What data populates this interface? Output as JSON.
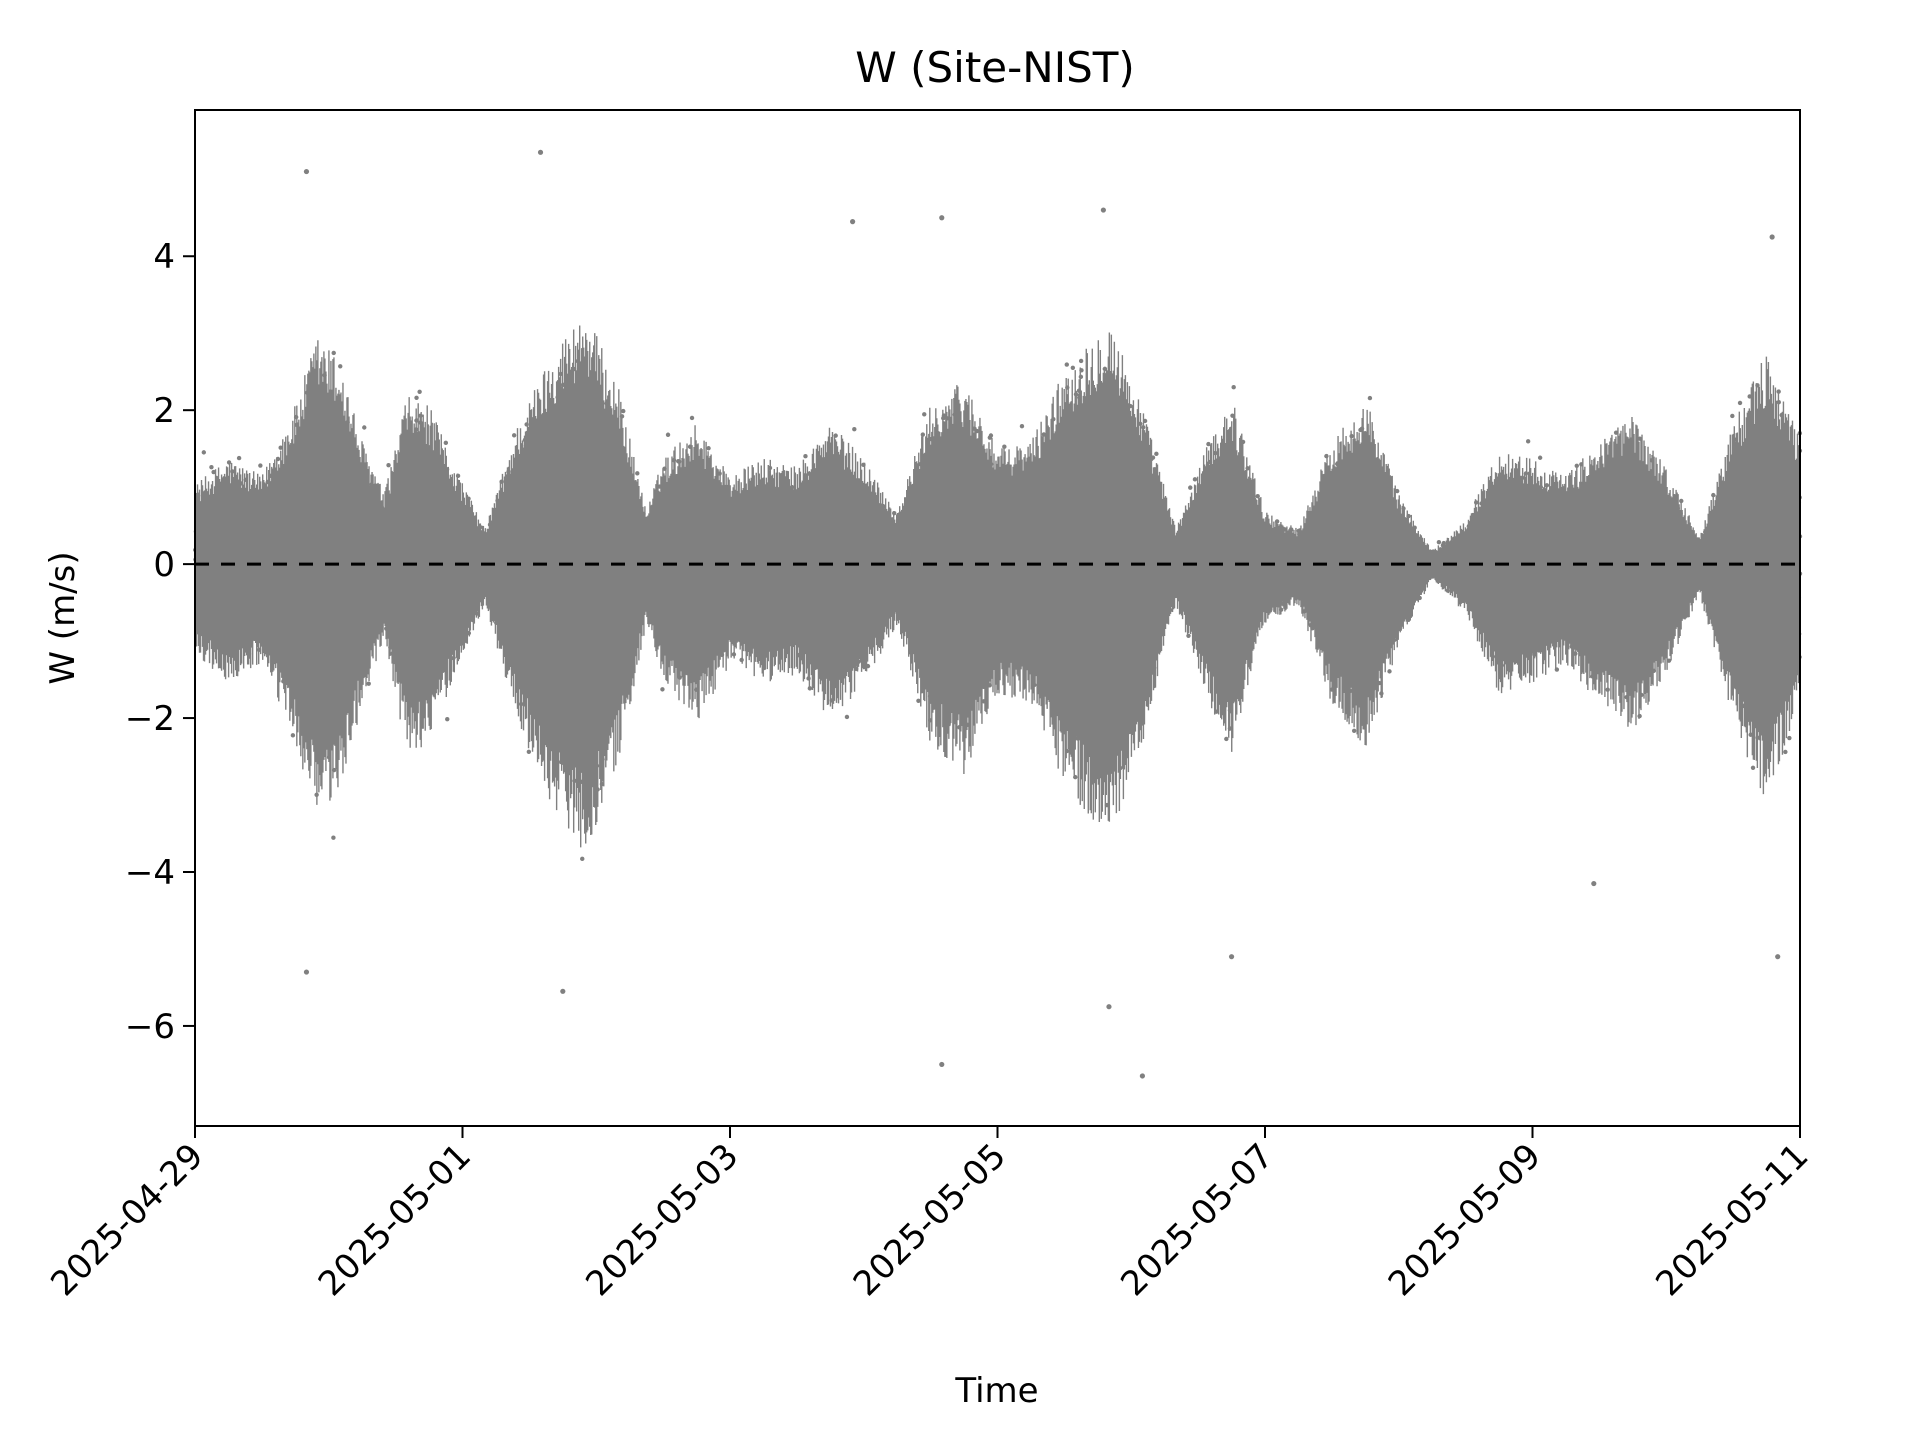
{
  "chart_data": {
    "type": "scatter",
    "title": "W (Site-NIST)",
    "xlabel": "Time",
    "ylabel": "W (m/s)",
    "xlim": [
      "2025-04-29",
      "2025-05-11"
    ],
    "ylim": [
      -7.3,
      5.9
    ],
    "x_ticks": [
      "2025-04-29",
      "2025-05-01",
      "2025-05-03",
      "2025-05-05",
      "2025-05-07",
      "2025-05-09",
      "2025-05-11"
    ],
    "y_ticks": [
      4,
      2,
      0,
      -2,
      -4,
      -6
    ],
    "y_tick_labels": [
      "4",
      "2",
      "0",
      "−2",
      "−4",
      "−6"
    ],
    "reference_line": {
      "y": 0,
      "style": "dashed",
      "color": "#000000"
    },
    "marker_color": "#808080",
    "grid": false,
    "series": [
      {
        "points_mean_abs": [
          [
            "2025-04-29T00:00",
            0.9
          ],
          [
            "2025-04-29T06:00",
            1.2
          ],
          [
            "2025-04-29T12:00",
            1.0
          ],
          [
            "2025-04-29T18:00",
            1.8
          ],
          [
            "2025-04-29T22:00",
            2.6
          ],
          [
            "2025-04-30T02:00",
            2.3
          ],
          [
            "2025-04-30T06:00",
            1.4
          ],
          [
            "2025-04-30T10:00",
            0.8
          ],
          [
            "2025-04-30T14:00",
            1.9
          ],
          [
            "2025-04-30T18:00",
            1.8
          ],
          [
            "2025-04-30T22:00",
            1.2
          ],
          [
            "2025-05-01T04:00",
            0.4
          ],
          [
            "2025-05-01T10:00",
            1.6
          ],
          [
            "2025-05-01T16:00",
            2.4
          ],
          [
            "2025-05-01T22:00",
            2.9
          ],
          [
            "2025-05-02T04:00",
            2.0
          ],
          [
            "2025-05-02T09:00",
            0.6
          ],
          [
            "2025-05-02T12:00",
            1.2
          ],
          [
            "2025-05-02T18:00",
            1.6
          ],
          [
            "2025-05-03T00:00",
            1.0
          ],
          [
            "2025-05-03T06:00",
            1.2
          ],
          [
            "2025-05-03T12:00",
            1.1
          ],
          [
            "2025-05-03T18:00",
            1.6
          ],
          [
            "2025-05-04T00:00",
            1.2
          ],
          [
            "2025-05-04T06:00",
            0.6
          ],
          [
            "2025-05-04T12:00",
            1.8
          ],
          [
            "2025-05-04T18:00",
            2.1
          ],
          [
            "2025-05-05T00:00",
            1.3
          ],
          [
            "2025-05-05T06:00",
            1.4
          ],
          [
            "2025-05-05T12:00",
            2.2
          ],
          [
            "2025-05-05T20:00",
            2.8
          ],
          [
            "2025-05-06T02:00",
            1.8
          ],
          [
            "2025-05-06T08:00",
            0.4
          ],
          [
            "2025-05-06T14:00",
            1.4
          ],
          [
            "2025-05-06T18:00",
            1.9
          ],
          [
            "2025-05-07T00:00",
            0.6
          ],
          [
            "2025-05-07T06:00",
            0.4
          ],
          [
            "2025-05-07T12:00",
            1.4
          ],
          [
            "2025-05-07T18:00",
            1.9
          ],
          [
            "2025-05-08T00:00",
            0.8
          ],
          [
            "2025-05-08T06:00",
            0.15
          ],
          [
            "2025-05-08T12:00",
            0.5
          ],
          [
            "2025-05-08T18:00",
            1.3
          ],
          [
            "2025-05-09T00:00",
            1.2
          ],
          [
            "2025-05-09T06:00",
            1.0
          ],
          [
            "2025-05-09T12:00",
            1.4
          ],
          [
            "2025-05-09T18:00",
            1.7
          ],
          [
            "2025-05-10T00:00",
            1.1
          ],
          [
            "2025-05-10T06:00",
            0.3
          ],
          [
            "2025-05-10T12:00",
            1.6
          ],
          [
            "2025-05-10T18:00",
            2.4
          ],
          [
            "2025-05-11T00:00",
            1.4
          ]
        ],
        "outliers": [
          [
            "2025-04-29T20:00",
            5.1
          ],
          [
            "2025-05-01T14:00",
            5.35
          ],
          [
            "2025-05-03T22:00",
            4.45
          ],
          [
            "2025-05-04T14:00",
            4.5
          ],
          [
            "2025-05-05T19:00",
            4.6
          ],
          [
            "2025-05-10T19:00",
            4.25
          ],
          [
            "2025-04-29T20:00",
            -5.3
          ],
          [
            "2025-05-01T18:00",
            -5.55
          ],
          [
            "2025-05-04T14:00",
            -6.5
          ],
          [
            "2025-05-05T20:00",
            -5.75
          ],
          [
            "2025-05-06T02:00",
            -6.65
          ],
          [
            "2025-05-06T18:00",
            -5.1
          ],
          [
            "2025-05-09T11:00",
            -4.15
          ],
          [
            "2025-05-10T20:00",
            -5.1
          ]
        ]
      }
    ]
  }
}
